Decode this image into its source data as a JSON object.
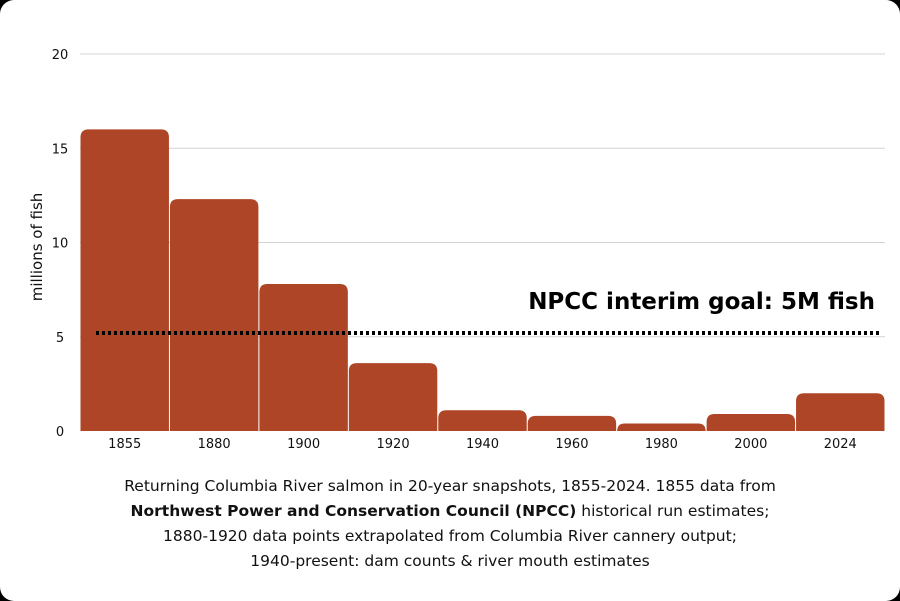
{
  "chart_data": {
    "type": "bar",
    "categories": [
      "1855",
      "1880",
      "1900",
      "1920",
      "1940",
      "1960",
      "1980",
      "2000",
      "2024"
    ],
    "values": [
      16.0,
      12.3,
      7.8,
      3.6,
      1.1,
      0.8,
      0.4,
      0.9,
      2.0
    ],
    "ylabel": "millions of fish",
    "xlabel": "",
    "ylim": [
      0,
      20
    ],
    "yticks": [
      0,
      5,
      10,
      15,
      20
    ],
    "grid": true,
    "bar_color": "#ad4526",
    "reference_line": {
      "value": 5.2,
      "label": "NPCC interim goal: 5M fish",
      "style": "dotted",
      "color": "#000000"
    }
  },
  "caption": {
    "line1": "Returning Columbia River salmon in 20-year snapshots, 1855-2024. 1855 data from",
    "line2_bold": "Northwest Power and Conservation Council (NPCC)",
    "line2_rest": " historical run estimates;",
    "line3": "1880-1920 data points extrapolated from Columbia River cannery output;",
    "line4": "1940-present: dam counts & river mouth estimates"
  }
}
